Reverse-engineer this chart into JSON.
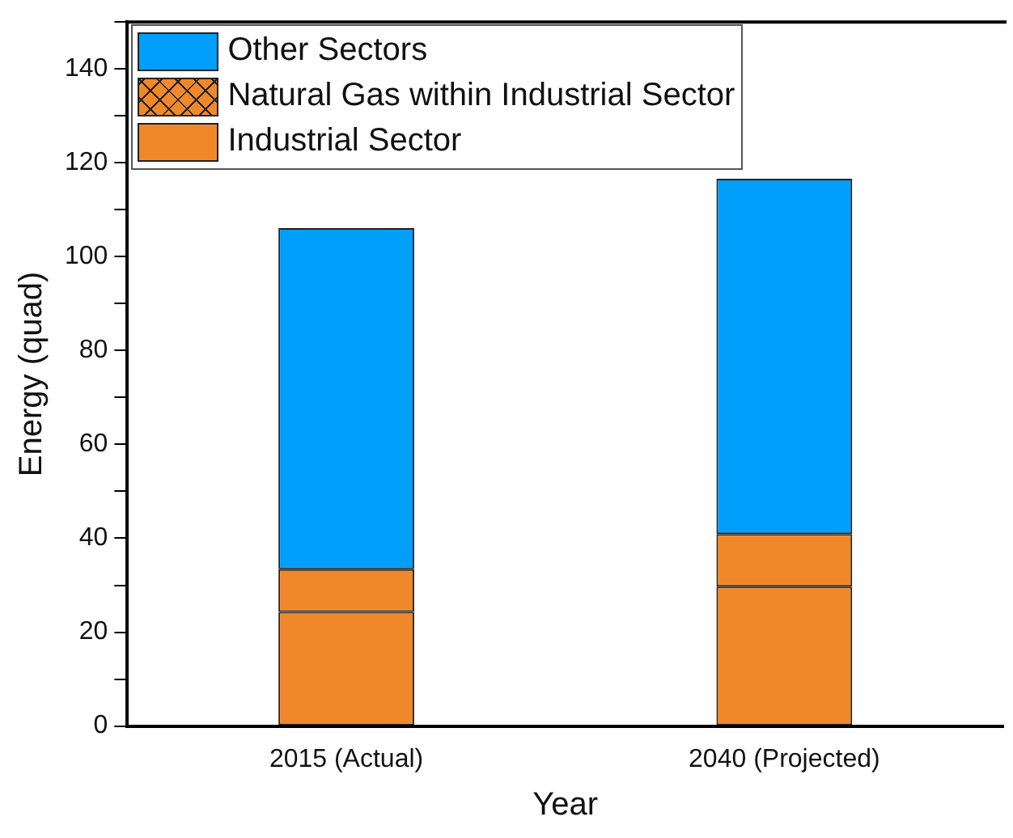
{
  "chart_data": {
    "type": "bar",
    "stacked": true,
    "xlabel": "Year",
    "ylabel": "Energy (quad)",
    "categories": [
      "2015 (Actual)",
      "2040 (Projected)"
    ],
    "series": [
      {
        "name": "Industrial Sector",
        "color": "#f0882a",
        "values": [
          24.3,
          29.7
        ]
      },
      {
        "name": "Natural Gas within Industrial Sector",
        "color": "#f0882a",
        "values": [
          9.1,
          11.2
        ]
      },
      {
        "name": "Other Sectors",
        "color": "#009ffc",
        "values": [
          72.7,
          75.7
        ]
      }
    ],
    "ylim": [
      0,
      150
    ],
    "yticks": [
      0,
      {
        "value": 10,
        "label": null
      },
      20,
      {
        "value": 30,
        "label": null
      },
      40,
      {
        "value": 50,
        "label": null
      },
      60,
      {
        "value": 70,
        "label": null
      },
      80,
      {
        "value": 90,
        "label": null
      },
      100,
      {
        "value": 110,
        "label": null
      },
      120,
      {
        "value": 130,
        "label": null
      },
      140,
      {
        "value": 150,
        "label": null
      }
    ],
    "grid": false,
    "legend": "top left"
  }
}
